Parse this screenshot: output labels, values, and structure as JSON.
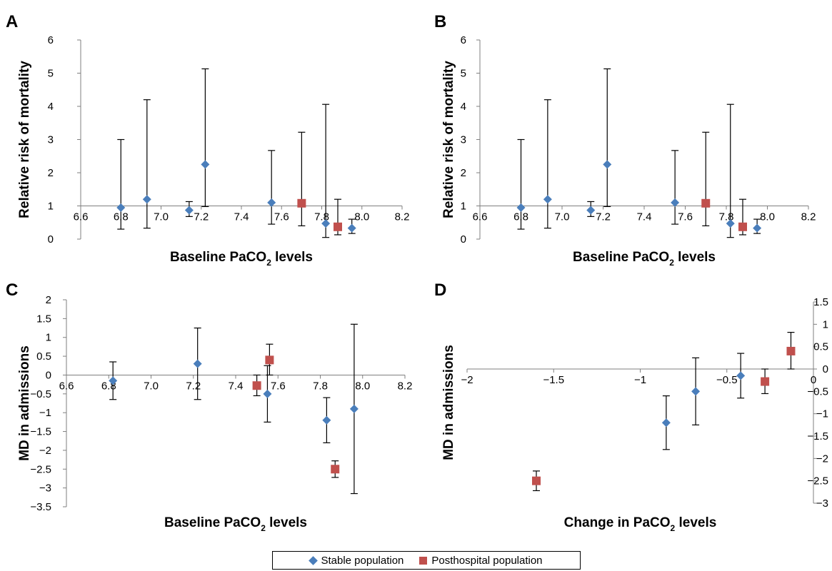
{
  "colors": {
    "stable": "#4a7ebb",
    "posthospital": "#c0504d",
    "axis": "#7f7f7f",
    "errorbar": "#000000"
  },
  "legend": {
    "stable": "Stable population",
    "posthospital": "Posthospital population"
  },
  "chart_data": [
    {
      "panel": "A",
      "type": "scatter",
      "xlabel": "Baseline PaCO",
      "xlabel_sub": "2",
      "xlabel_suffix": " levels",
      "ylabel": "Relative risk of mortality",
      "xlim": [
        6.6,
        8.2
      ],
      "ylim": [
        0,
        6
      ],
      "x_cross": 1,
      "x_ticks": [
        "6.6",
        "6.8",
        "7.0",
        "7.2",
        "7.4",
        "7.6",
        "7.8",
        "8.0",
        "8.2"
      ],
      "y_ticks": [
        "0",
        "1",
        "2",
        "3",
        "4",
        "5",
        "6"
      ],
      "series": [
        {
          "name": "Stable population",
          "marker": "diamond",
          "points": [
            {
              "x": 6.8,
              "y": 0.95,
              "lo": 0.3,
              "hi": 3.0
            },
            {
              "x": 6.93,
              "y": 1.2,
              "lo": 0.33,
              "hi": 4.2
            },
            {
              "x": 7.14,
              "y": 0.87,
              "lo": 0.68,
              "hi": 1.13
            },
            {
              "x": 7.22,
              "y": 2.25,
              "lo": 0.98,
              "hi": 5.13
            },
            {
              "x": 7.55,
              "y": 1.1,
              "lo": 0.45,
              "hi": 2.67
            },
            {
              "x": 7.82,
              "y": 0.47,
              "lo": 0.05,
              "hi": 4.06
            },
            {
              "x": 7.95,
              "y": 0.33,
              "lo": 0.17,
              "hi": 0.6
            }
          ]
        },
        {
          "name": "Posthospital population",
          "marker": "square",
          "points": [
            {
              "x": 7.7,
              "y": 1.08,
              "lo": 0.4,
              "hi": 3.22
            },
            {
              "x": 7.88,
              "y": 0.37,
              "lo": 0.13,
              "hi": 1.2
            }
          ]
        }
      ]
    },
    {
      "panel": "B",
      "type": "scatter",
      "xlabel": "Baseline PaCO",
      "xlabel_sub": "2",
      "xlabel_suffix": " levels",
      "ylabel": "Relative risk of mortality",
      "xlim": [
        6.6,
        8.2
      ],
      "ylim": [
        0,
        6
      ],
      "x_cross": 1,
      "x_ticks": [
        "6.6",
        "6.8",
        "7.0",
        "7.2",
        "7.4",
        "7.6",
        "7.8",
        "8.0",
        "8.2"
      ],
      "y_ticks": [
        "0",
        "1",
        "2",
        "3",
        "4",
        "5",
        "6"
      ],
      "series": [
        {
          "name": "Stable population",
          "marker": "diamond",
          "points": [
            {
              "x": 6.8,
              "y": 0.95,
              "lo": 0.3,
              "hi": 3.0
            },
            {
              "x": 6.93,
              "y": 1.2,
              "lo": 0.33,
              "hi": 4.2
            },
            {
              "x": 7.14,
              "y": 0.87,
              "lo": 0.68,
              "hi": 1.13
            },
            {
              "x": 7.22,
              "y": 2.25,
              "lo": 0.98,
              "hi": 5.13
            },
            {
              "x": 7.55,
              "y": 1.1,
              "lo": 0.45,
              "hi": 2.67
            },
            {
              "x": 7.82,
              "y": 0.47,
              "lo": 0.05,
              "hi": 4.06
            },
            {
              "x": 7.95,
              "y": 0.33,
              "lo": 0.17,
              "hi": 0.6
            }
          ]
        },
        {
          "name": "Posthospital population",
          "marker": "square",
          "points": [
            {
              "x": 7.7,
              "y": 1.08,
              "lo": 0.4,
              "hi": 3.22
            },
            {
              "x": 7.88,
              "y": 0.37,
              "lo": 0.13,
              "hi": 1.2
            }
          ]
        }
      ]
    },
    {
      "panel": "C",
      "type": "scatter",
      "xlabel": "Baseline PaCO",
      "xlabel_sub": "2",
      "xlabel_suffix": " levels",
      "ylabel": "MD in admissions",
      "xlim": [
        6.6,
        8.2
      ],
      "ylim": [
        -3.5,
        2
      ],
      "x_cross": 0,
      "x_ticks": [
        "6.6",
        "6.8",
        "7.0",
        "7.2",
        "7.4",
        "7.6",
        "7.8",
        "8.0",
        "8.2"
      ],
      "y_ticks": [
        "-3.5",
        "-3",
        "-2.5",
        "-2",
        "-1.5",
        "-1",
        "-0.5",
        "0",
        "0.5",
        "1",
        "1.5",
        "2"
      ],
      "series": [
        {
          "name": "Stable population",
          "marker": "diamond",
          "points": [
            {
              "x": 6.82,
              "y": -0.15,
              "lo": -0.65,
              "hi": 0.35
            },
            {
              "x": 7.22,
              "y": 0.3,
              "lo": -0.65,
              "hi": 1.25
            },
            {
              "x": 7.55,
              "y": -0.5,
              "lo": -1.25,
              "hi": 0.25
            },
            {
              "x": 7.83,
              "y": -1.2,
              "lo": -1.8,
              "hi": -0.6
            },
            {
              "x": 7.96,
              "y": -0.9,
              "lo": -3.15,
              "hi": 1.35
            }
          ]
        },
        {
          "name": "Posthospital population",
          "marker": "square",
          "points": [
            {
              "x": 7.5,
              "y": -0.28,
              "lo": -0.55,
              "hi": 0.0
            },
            {
              "x": 7.56,
              "y": 0.4,
              "lo": 0.0,
              "hi": 0.82
            },
            {
              "x": 7.87,
              "y": -2.5,
              "lo": -2.72,
              "hi": -2.28
            }
          ]
        }
      ]
    },
    {
      "panel": "D",
      "type": "scatter",
      "xlabel": "Change in PaCO",
      "xlabel_sub": "2",
      "xlabel_suffix": " levels",
      "ylabel": "MD in admissions",
      "xlim": [
        -2,
        0
      ],
      "ylim": [
        -3,
        1.5
      ],
      "x_cross": 0,
      "x_ticks": [
        "-2",
        "-1.5",
        "-1",
        "-0.5",
        "0"
      ],
      "y_ticks": [
        "-3",
        "-2.5",
        "-2",
        "-1.5",
        "-1",
        "-0.5",
        "0",
        "0.5",
        "1",
        "1.5"
      ],
      "series": [
        {
          "name": "Stable population",
          "marker": "diamond",
          "points": [
            {
              "x": -0.85,
              "y": -1.2,
              "lo": -1.8,
              "hi": -0.6
            },
            {
              "x": -0.68,
              "y": -0.5,
              "lo": -1.25,
              "hi": 0.25
            },
            {
              "x": -0.42,
              "y": -0.15,
              "lo": -0.65,
              "hi": 0.35
            }
          ]
        },
        {
          "name": "Posthospital population",
          "marker": "square",
          "points": [
            {
              "x": -1.6,
              "y": -2.5,
              "lo": -2.72,
              "hi": -2.28
            },
            {
              "x": -0.28,
              "y": -0.28,
              "lo": -0.55,
              "hi": 0.0
            },
            {
              "x": -0.13,
              "y": 0.4,
              "lo": 0.0,
              "hi": 0.82
            }
          ]
        }
      ]
    }
  ]
}
